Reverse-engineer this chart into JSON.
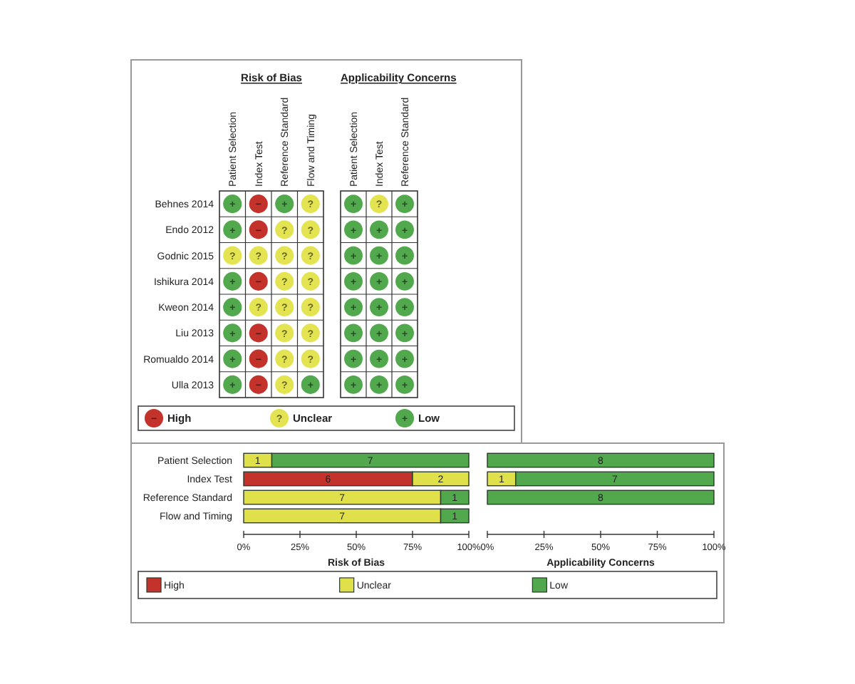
{
  "chart_data": [
    {
      "type": "heatmap",
      "title": "Risk of Bias",
      "categories": [
        "Patient Selection",
        "Index Test",
        "Reference Standard",
        "Flow and Timing"
      ],
      "y_categories": [
        "Behnes 2014",
        "Endo 2012",
        "Godnic 2015",
        "Ishikura 2014",
        "Kweon 2014",
        "Liu 2013",
        "Romualdo 2014",
        "Ulla 2013"
      ],
      "cells": [
        [
          "+",
          "−",
          "+",
          "?"
        ],
        [
          "+",
          "−",
          "?",
          "?"
        ],
        [
          "?",
          "?",
          "?",
          "?"
        ],
        [
          "+",
          "−",
          "?",
          "?"
        ],
        [
          "+",
          "?",
          "?",
          "?"
        ],
        [
          "+",
          "−",
          "?",
          "?"
        ],
        [
          "+",
          "−",
          "?",
          "?"
        ],
        [
          "+",
          "−",
          "?",
          "+"
        ]
      ],
      "colors": [
        [
          "#52a84c",
          "#c4322c",
          "#52a84c",
          "#e4e452"
        ],
        [
          "#52a84c",
          "#c4322c",
          "#e4e452",
          "#e4e452"
        ],
        [
          "#e4e452",
          "#e4e452",
          "#e4e452",
          "#e4e452"
        ],
        [
          "#52a84c",
          "#c4322c",
          "#e4e452",
          "#e4e452"
        ],
        [
          "#52a84c",
          "#e4e452",
          "#e4e452",
          "#e4e452"
        ],
        [
          "#52a84c",
          "#c4322c",
          "#e4e452",
          "#e4e452"
        ],
        [
          "#52a84c",
          "#c4322c",
          "#e4e452",
          "#e4e452"
        ],
        [
          "#52a84c",
          "#c4322c",
          "#e4e452",
          "#52a84c"
        ]
      ],
      "cticks": [
        {
          "value": "−",
          "label": "High"
        },
        {
          "value": "?",
          "label": "Unclear"
        },
        {
          "value": "+",
          "label": "Low"
        }
      ]
    },
    {
      "type": "heatmap",
      "title": "Applicability Concerns",
      "categories": [
        "Patient Selection",
        "Index Test",
        "Reference Standard"
      ],
      "y_categories": [
        null,
        null,
        null,
        null,
        null,
        null,
        null,
        null
      ],
      "cells": [
        [
          "+",
          "?",
          "+"
        ],
        [
          "+",
          "+",
          "+"
        ],
        [
          "+",
          "+",
          "+"
        ],
        [
          "+",
          "+",
          "+"
        ],
        [
          "+",
          "+",
          "+"
        ],
        [
          "+",
          "+",
          "+"
        ],
        [
          "+",
          "+",
          "+"
        ],
        [
          "+",
          "+",
          "+"
        ]
      ],
      "colors": [
        [
          "#52a84c",
          "#e4e452",
          "#52a84c"
        ],
        [
          "#52a84c",
          "#52a84c",
          "#52a84c"
        ],
        [
          "#52a84c",
          "#52a84c",
          "#52a84c"
        ],
        [
          "#52a84c",
          "#52a84c",
          "#52a84c"
        ],
        [
          "#52a84c",
          "#52a84c",
          "#52a84c"
        ],
        [
          "#52a84c",
          "#52a84c",
          "#52a84c"
        ],
        [
          "#52a84c",
          "#52a84c",
          "#52a84c"
        ],
        [
          "#52a84c",
          "#52a84c",
          "#52a84c"
        ]
      ]
    },
    {
      "type": "bar",
      "orientation": "horizontal",
      "stacked": true,
      "xlabel": "Risk of Bias",
      "categories": [
        "Patient Selection",
        "Index Test",
        "Reference Standard",
        "Flow and Timing"
      ],
      "series": [
        {
          "name": "High",
          "color": "#c4322c",
          "values": [
            null,
            75,
            null,
            null
          ]
        },
        {
          "name": "Unclear",
          "color": "#dfe04a",
          "values": [
            12.5,
            25,
            87.5,
            87.5
          ]
        },
        {
          "name": "Low",
          "color": "#52a84c",
          "values": [
            87.5,
            null,
            12.5,
            12.5
          ]
        }
      ],
      "annotations": [
        {
          "text": "1",
          "x": 6.25,
          "y": "Patient Selection"
        },
        {
          "text": "7",
          "x": 56.25,
          "y": "Patient Selection"
        },
        {
          "text": "6",
          "x": 37.5,
          "y": "Index Test"
        },
        {
          "text": "2",
          "x": 87.5,
          "y": "Index Test"
        },
        {
          "text": "7",
          "x": 43.75,
          "y": "Reference Standard"
        },
        {
          "text": "1",
          "x": 93.75,
          "y": "Reference Standard"
        },
        {
          "text": "7",
          "x": 43.75,
          "y": "Flow and Timing"
        },
        {
          "text": "1",
          "x": 93.75,
          "y": "Flow and Timing"
        }
      ],
      "xlim": [
        0,
        100
      ],
      "xticks": [
        {
          "value": 0,
          "label": "0%"
        },
        {
          "value": 25,
          "label": "25%"
        },
        {
          "value": 50,
          "label": "50%"
        },
        {
          "value": 75,
          "label": "75%"
        },
        {
          "value": 100,
          "label": "100%"
        }
      ],
      "legend": "bottom"
    },
    {
      "type": "bar",
      "orientation": "horizontal",
      "stacked": true,
      "xlabel": "Applicability Concerns",
      "categories": [
        "Patient Selection",
        "Index Test",
        "Reference Standard",
        "Flow and Timing"
      ],
      "tick_labels": "x",
      "series": [
        {
          "color": "#dfe04a",
          "values": [
            null,
            12.5,
            null,
            null
          ]
        },
        {
          "color": "#52a84c",
          "values": [
            100,
            87.5,
            100,
            null
          ]
        }
      ],
      "annotations": [
        {
          "text": "8",
          "x": 50,
          "y": "Patient Selection"
        },
        {
          "text": "1",
          "x": 6.25,
          "y": "Index Test"
        },
        {
          "text": "7",
          "x": 56.25,
          "y": "Index Test"
        },
        {
          "text": "8",
          "x": 50,
          "y": "Reference Standard"
        }
      ],
      "xlim": [
        0,
        100
      ],
      "xticks": [
        {
          "value": 0,
          "label": "0%"
        },
        {
          "value": 25,
          "label": "25%"
        },
        {
          "value": 50,
          "label": "50%"
        },
        {
          "value": 75,
          "label": "75%"
        },
        {
          "value": 100,
          "label": "100%"
        }
      ]
    }
  ]
}
